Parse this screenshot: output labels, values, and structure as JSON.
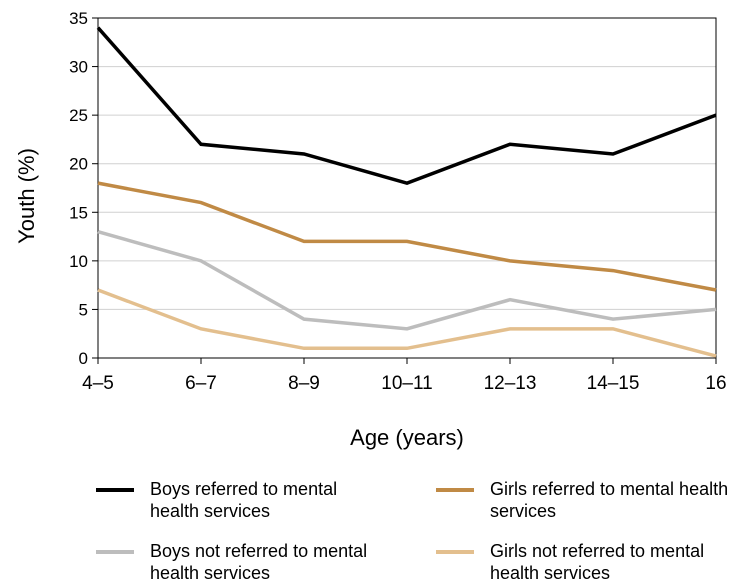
{
  "chart_data": {
    "type": "line",
    "title": "",
    "xlabel": "Age (years)",
    "ylabel": "Youth (%)",
    "categories": [
      "4–5",
      "6–7",
      "8–9",
      "10–11",
      "12–13",
      "14–15",
      "16"
    ],
    "ylim": [
      0,
      35
    ],
    "yticks": [
      0,
      5,
      10,
      15,
      20,
      25,
      30,
      35
    ],
    "grid": "horizontal",
    "legend_position": "bottom",
    "series": [
      {
        "name": "Boys referred to mental health services",
        "color": "#000000",
        "values": [
          34,
          22,
          21,
          18,
          22,
          21,
          25
        ]
      },
      {
        "name": "Girls referred to mental health services",
        "color": "#c08a45",
        "values": [
          18,
          16,
          12,
          12,
          10,
          9,
          7
        ]
      },
      {
        "name": "Boys not referred to mental health services",
        "color": "#bdbdbd",
        "values": [
          13,
          10,
          4,
          3,
          6,
          4,
          5
        ]
      },
      {
        "name": "Girls not referred to mental health services",
        "color": "#e3bf8e",
        "values": [
          7,
          3,
          1,
          1,
          3,
          3,
          0.2
        ]
      }
    ]
  }
}
